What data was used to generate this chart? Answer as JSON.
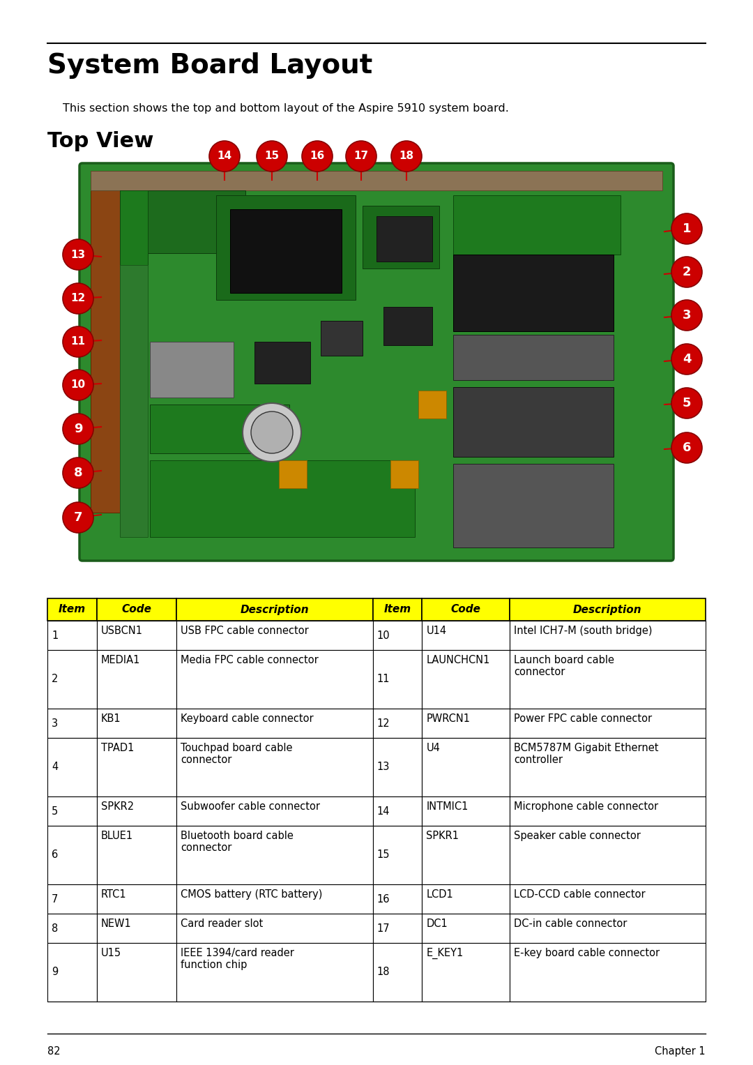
{
  "title": "System Board Layout",
  "subtitle": "This section shows the top and bottom layout of the Aspire 5910 system board.",
  "section": "Top View",
  "page_num": "82",
  "chapter": "Chapter 1",
  "bg_color": "#ffffff",
  "title_color": "#000000",
  "header_bg": "#ffff00",
  "header_text_color": "#000000",
  "table_border_color": "#000000",
  "table_data": [
    [
      "1",
      "USBCN1",
      "USB FPC cable connector",
      "10",
      "U14",
      "Intel ICH7-M (south bridge)"
    ],
    [
      "2",
      "MEDIA1",
      "Media FPC cable connector",
      "11",
      "LAUNCHCN1",
      "Launch board cable\nconnector"
    ],
    [
      "3",
      "KB1",
      "Keyboard cable connector",
      "12",
      "PWRCN1",
      "Power FPC cable connector"
    ],
    [
      "4",
      "TPAD1",
      "Touchpad board cable\nconnector",
      "13",
      "U4",
      "BCM5787M Gigabit Ethernet\ncontroller"
    ],
    [
      "5",
      "SPKR2",
      "Subwoofer cable connector",
      "14",
      "INTMIC1",
      "Microphone cable connector"
    ],
    [
      "6",
      "BLUE1",
      "Bluetooth board cable\nconnector",
      "15",
      "SPKR1",
      "Speaker cable connector"
    ],
    [
      "7",
      "RTC1",
      "CMOS battery (RTC battery)",
      "16",
      "LCD1",
      "LCD-CCD cable connector"
    ],
    [
      "8",
      "NEW1",
      "Card reader slot",
      "17",
      "DC1",
      "DC-in cable connector"
    ],
    [
      "9",
      "U15",
      "IEEE 1394/card reader\nfunction chip",
      "18",
      "E_KEY1",
      "E-key board cable connector"
    ]
  ],
  "col_headers": [
    "Item",
    "Code",
    "Description",
    "Item",
    "Code",
    "Description"
  ],
  "badge_color": "#cc0000",
  "badge_text_color": "#ffffff",
  "line_color": "#cc0000",
  "pcb_color": "#2d8a2d",
  "pcb_edge_color": "#1a5c1a"
}
